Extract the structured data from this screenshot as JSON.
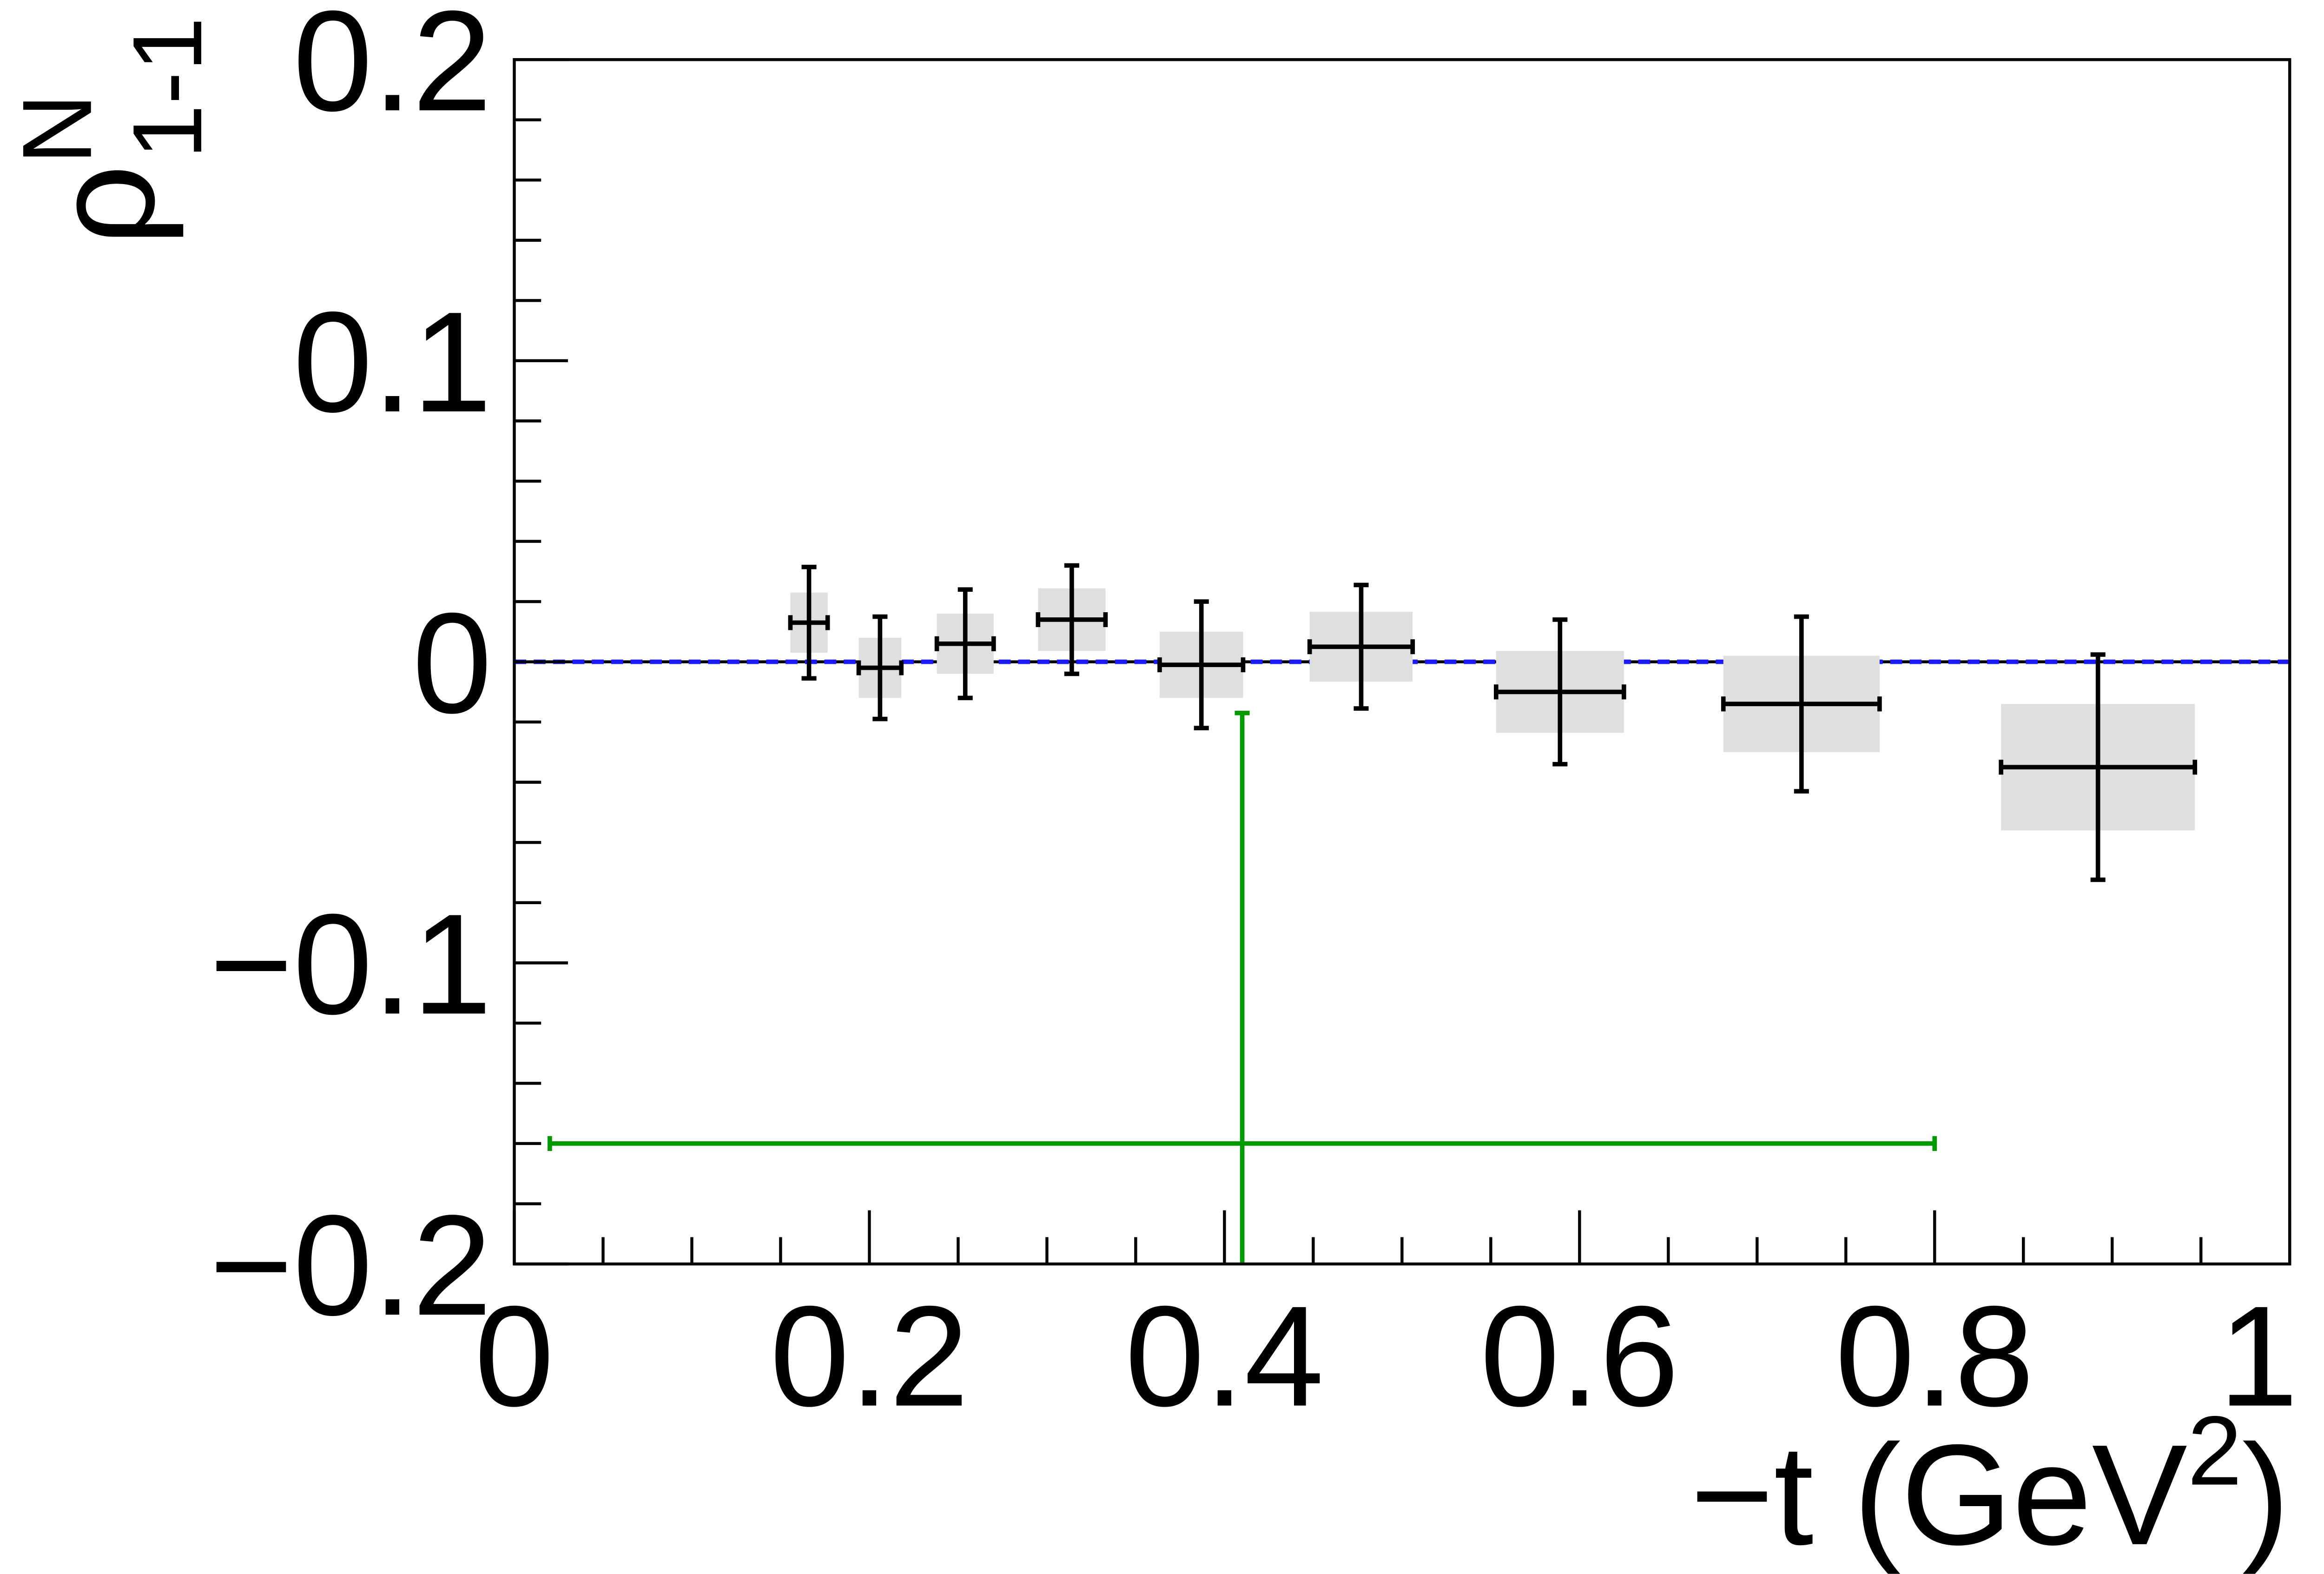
{
  "chart_data": {
    "type": "scatter",
    "y_label": {
      "symbol": "ρ",
      "superscript": "N",
      "subscript": "1-1"
    },
    "x_label": {
      "text": "−t (GeV",
      "superscript": "2",
      "suffix": ")"
    },
    "xlim": [
      0,
      1
    ],
    "ylim": [
      -0.2,
      0.2
    ],
    "xticks": [
      0,
      0.2,
      0.4,
      0.6,
      0.8,
      1
    ],
    "xminorticks": [
      0.05,
      0.1,
      0.15,
      0.25,
      0.3,
      0.35,
      0.45,
      0.5,
      0.55,
      0.65,
      0.7,
      0.75,
      0.85,
      0.9,
      0.95
    ],
    "yticks": [
      {
        "value": -0.2,
        "label": "−0.2"
      },
      {
        "value": -0.1,
        "label": "−0.1"
      },
      0,
      0.1,
      0.2
    ],
    "yminorticks": [
      -0.18,
      -0.16,
      -0.14,
      -0.12,
      -0.08,
      -0.06,
      -0.04,
      -0.02,
      0.02,
      0.04,
      0.06,
      0.08,
      0.12,
      0.14,
      0.16,
      0.18
    ],
    "reference_line": {
      "value": 0,
      "color": "#1a1aff"
    },
    "series": [
      {
        "color": "#000000",
        "sys_color": "#dfdfdf",
        "x": [
          0.166,
          0.206,
          0.254,
          0.314,
          0.387,
          0.477,
          0.589,
          0.725,
          0.892
        ],
        "values": [
          0.013,
          -0.002,
          0.006,
          0.014,
          -0.001,
          0.005,
          -0.01,
          -0.014,
          -0.035
        ],
        "xerr": [
          0.0105,
          0.012,
          0.016,
          0.019,
          0.0235,
          0.029,
          0.036,
          0.044,
          0.0546
        ],
        "yerr": [
          0.0185,
          0.017,
          0.018,
          0.018,
          0.021,
          0.0205,
          0.024,
          0.029,
          0.0374
        ],
        "sys_err": [
          0.01,
          0.01,
          0.01,
          0.0104,
          0.011,
          0.0116,
          0.0136,
          0.016,
          0.021
        ]
      },
      {
        "color": "#009900",
        "x": [
          0.41
        ],
        "values": [
          -0.16
        ],
        "xerr": [
          0.39
        ],
        "yerr": [
          0.143
        ]
      }
    ]
  }
}
